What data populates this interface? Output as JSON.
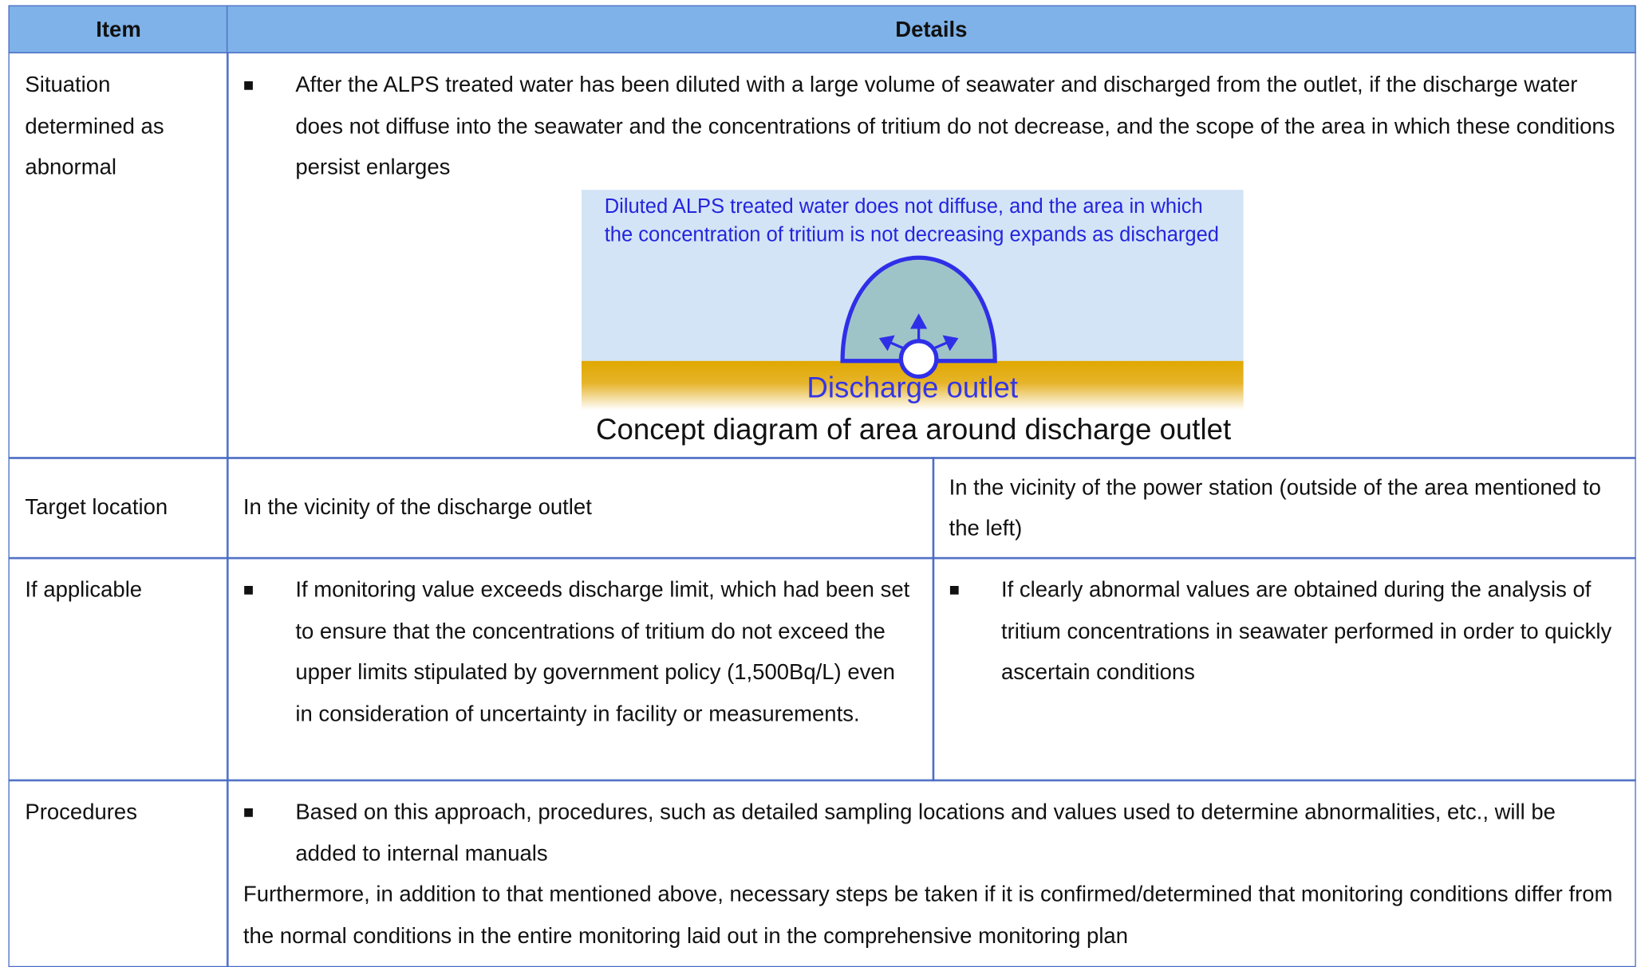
{
  "table": {
    "headers": [
      "Item",
      "Details"
    ],
    "rows": [
      {
        "item": "Situation determined as abnormal",
        "bullets": [
          "After the ALPS treated water has been diluted with a large volume of seawater and discharged from the outlet, if the discharge water does not diffuse into the seawater and the concentrations of tritium do not decrease, and the scope of the area in which these conditions persist enlarges"
        ],
        "diagram": {
          "note": "Diluted ALPS treated water does not diffuse, and the area in which the concentration of tritium is not decreasing expands as discharged",
          "outlet_label": "Discharge outlet",
          "caption": "Concept diagram of area around discharge outlet"
        }
      },
      {
        "item": "Target location",
        "left": "In the vicinity of the discharge outlet",
        "right": "In the vicinity of the power station (outside of the area mentioned to the left)"
      },
      {
        "item": "If applicable",
        "left_bullets": [
          "If monitoring value exceeds discharge limit, which had been set to ensure that the concentrations of tritium do not exceed the upper limits stipulated by government policy (1,500Bq/L) even in consideration of uncertainty in facility or measurements."
        ],
        "right_bullets": [
          "If clearly abnormal values are obtained during the analysis of tritium concentrations in seawater performed in order to quickly ascertain conditions"
        ]
      },
      {
        "item": "Procedures",
        "bullets": [
          "Based on this approach, procedures, such as detailed sampling locations and values used to determine abnormalities, etc., will be added to internal manuals"
        ],
        "note": "Furthermore, in addition to that mentioned above, necessary steps be taken if it is confirmed/determined that monitoring conditions differ from the normal conditions in the entire monitoring laid out in the comprehensive monitoring plan"
      }
    ]
  }
}
